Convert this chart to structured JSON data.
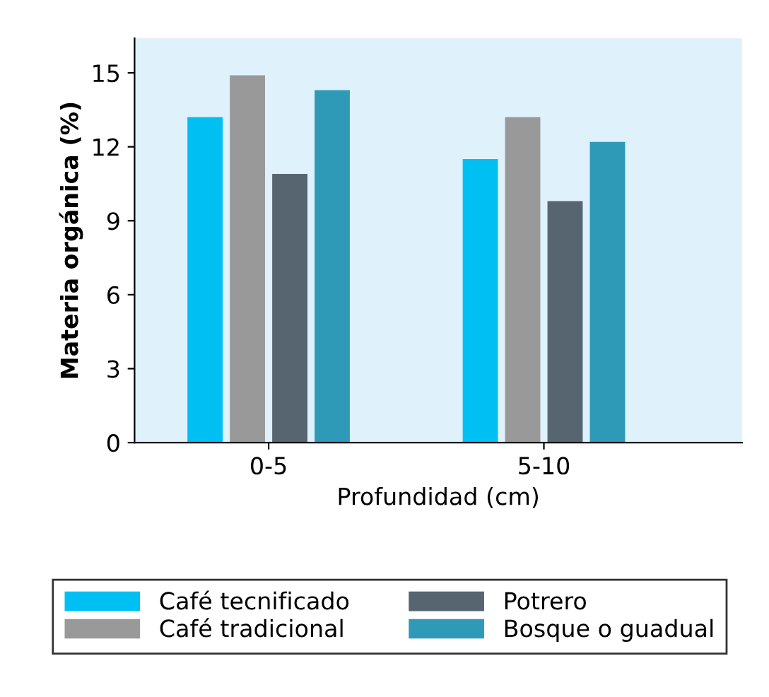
{
  "chart_data": {
    "type": "bar",
    "xlabel": "Profundidad (cm)",
    "ylabel": "Materia orgánica (%)",
    "categories": [
      "0-5",
      "5-10"
    ],
    "series": [
      {
        "name": "Café tecnificado",
        "color": "#00bff3",
        "values": [
          13.2,
          11.5
        ]
      },
      {
        "name": "Café tradicional",
        "color": "#999999",
        "values": [
          14.9,
          13.2
        ]
      },
      {
        "name": "Potrero",
        "color": "#566570",
        "values": [
          10.9,
          9.8
        ]
      },
      {
        "name": "Bosque o guadual",
        "color": "#2e9ab8",
        "values": [
          14.3,
          12.2
        ]
      }
    ],
    "ylim": [
      0,
      16.4
    ],
    "yticks": [
      0,
      3,
      6,
      9,
      12,
      15
    ],
    "grid": false,
    "legend": "bottom"
  }
}
